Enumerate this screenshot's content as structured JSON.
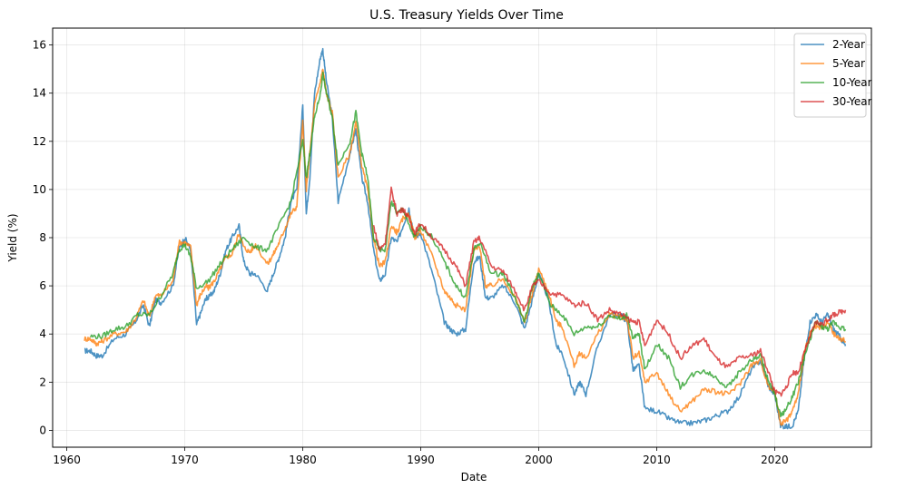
{
  "chart_data": {
    "type": "line",
    "title": "U.S. Treasury Yields Over Time",
    "xlabel": "Date",
    "ylabel": "Yield (%)",
    "xlim": [
      1958.8,
      2028.2
    ],
    "ylim": [
      -0.7,
      16.7
    ],
    "x_ticks": [
      1960,
      1970,
      1980,
      1990,
      2000,
      2010,
      2020
    ],
    "y_ticks": [
      0,
      2,
      4,
      6,
      8,
      10,
      12,
      14,
      16
    ],
    "grid": true,
    "legend_position": "top-right",
    "series": [
      {
        "name": "2-Year",
        "color": "#1f77b4",
        "x": [
          1961.5,
          1962.0,
          1962.5,
          1963.0,
          1964.0,
          1965.0,
          1965.8,
          1966.5,
          1967.0,
          1967.5,
          1968.0,
          1969.0,
          1969.5,
          1970.0,
          1970.5,
          1971.0,
          1971.3,
          1971.8,
          1972.0,
          1972.5,
          1973.0,
          1973.5,
          1974.0,
          1974.6,
          1975.0,
          1975.5,
          1976.0,
          1977.0,
          1977.5,
          1978.0,
          1978.5,
          1979.0,
          1979.5,
          1980.0,
          1980.3,
          1980.6,
          1981.0,
          1981.5,
          1981.7,
          1982.0,
          1982.5,
          1983.0,
          1984.0,
          1984.5,
          1985.0,
          1985.5,
          1986.0,
          1986.5,
          1987.0,
          1987.5,
          1988.0,
          1988.5,
          1989.0,
          1989.5,
          1990.0,
          1991.0,
          1992.0,
          1992.5,
          1993.0,
          1993.8,
          1994.5,
          1995.0,
          1995.5,
          1996.0,
          1997.0,
          1998.0,
          1998.8,
          1999.5,
          2000.0,
          2000.8,
          2001.5,
          2002.0,
          2003.0,
          2003.5,
          2004.0,
          2005.0,
          2006.0,
          2007.0,
          2007.5,
          2008.0,
          2008.5,
          2009.0,
          2010.0,
          2011.0,
          2012.0,
          2013.0,
          2014.0,
          2015.0,
          2016.0,
          2017.0,
          2018.0,
          2018.8,
          2019.5,
          2020.0,
          2020.5,
          2021.0,
          2021.5,
          2022.0,
          2022.5,
          2023.0,
          2023.5,
          2024.0,
          2024.5,
          2025.0,
          2025.5,
          2026.0
        ],
        "y": [
          3.3,
          3.3,
          3.1,
          3.1,
          3.8,
          4.0,
          4.5,
          5.2,
          4.3,
          5.4,
          5.3,
          6.0,
          7.5,
          8.0,
          7.5,
          4.4,
          4.8,
          5.5,
          5.5,
          5.8,
          6.5,
          7.5,
          8.0,
          8.5,
          7.0,
          6.5,
          6.5,
          5.8,
          6.5,
          7.2,
          8.0,
          9.5,
          10.0,
          13.5,
          9.0,
          10.5,
          14.0,
          15.5,
          15.8,
          14.5,
          13.0,
          9.5,
          11.5,
          12.5,
          10.5,
          9.5,
          7.5,
          6.2,
          6.5,
          8.0,
          7.8,
          8.5,
          9.2,
          8.0,
          8.2,
          6.5,
          4.5,
          4.2,
          4.0,
          4.2,
          7.0,
          7.2,
          5.5,
          5.5,
          6.0,
          5.3,
          4.2,
          5.5,
          6.5,
          5.5,
          3.5,
          3.2,
          1.5,
          2.0,
          1.5,
          3.5,
          4.8,
          4.8,
          4.5,
          2.5,
          2.7,
          0.9,
          0.8,
          0.5,
          0.3,
          0.3,
          0.4,
          0.6,
          0.8,
          1.4,
          2.5,
          2.9,
          1.8,
          1.5,
          0.2,
          0.15,
          0.2,
          0.8,
          3.0,
          4.5,
          4.8,
          4.5,
          4.8,
          4.2,
          3.9,
          3.5
        ]
      },
      {
        "name": "5-Year",
        "color": "#ff7f0e",
        "x": [
          1961.5,
          1962.0,
          1962.5,
          1963.0,
          1964.0,
          1965.0,
          1965.8,
          1966.5,
          1967.0,
          1967.5,
          1968.0,
          1969.0,
          1969.5,
          1970.0,
          1970.5,
          1971.0,
          1971.3,
          1971.8,
          1972.0,
          1972.5,
          1973.0,
          1973.5,
          1974.0,
          1974.6,
          1975.0,
          1975.5,
          1976.0,
          1977.0,
          1977.5,
          1978.0,
          1978.5,
          1979.0,
          1979.5,
          1980.0,
          1980.3,
          1980.6,
          1981.0,
          1981.5,
          1981.7,
          1982.0,
          1982.5,
          1983.0,
          1984.0,
          1984.5,
          1985.0,
          1985.5,
          1986.0,
          1986.5,
          1987.0,
          1987.5,
          1988.0,
          1988.5,
          1989.0,
          1989.5,
          1990.0,
          1991.0,
          1992.0,
          1992.5,
          1993.0,
          1993.8,
          1994.5,
          1995.0,
          1995.5,
          1996.0,
          1997.0,
          1998.0,
          1998.8,
          1999.5,
          2000.0,
          2000.8,
          2001.5,
          2002.0,
          2003.0,
          2003.5,
          2004.0,
          2005.0,
          2006.0,
          2007.0,
          2007.5,
          2008.0,
          2008.5,
          2009.0,
          2010.0,
          2011.0,
          2012.0,
          2013.0,
          2014.0,
          2015.0,
          2016.0,
          2017.0,
          2018.0,
          2018.8,
          2019.5,
          2020.0,
          2020.5,
          2021.0,
          2021.5,
          2022.0,
          2022.5,
          2023.0,
          2023.5,
          2024.0,
          2024.5,
          2025.0,
          2025.5,
          2026.0
        ],
        "y": [
          3.8,
          3.8,
          3.6,
          3.7,
          4.0,
          4.1,
          4.6,
          5.4,
          4.7,
          5.6,
          5.6,
          6.2,
          7.8,
          7.8,
          7.6,
          5.2,
          5.6,
          6.0,
          5.9,
          6.2,
          6.7,
          7.2,
          7.3,
          8.2,
          7.6,
          7.4,
          7.7,
          6.9,
          7.3,
          7.8,
          8.4,
          9.0,
          9.3,
          12.8,
          10.0,
          11.5,
          13.5,
          14.5,
          15.0,
          14.0,
          13.2,
          10.5,
          11.5,
          12.8,
          11.0,
          10.0,
          8.0,
          6.8,
          7.0,
          8.5,
          8.2,
          8.8,
          9.0,
          8.0,
          8.3,
          7.2,
          5.8,
          5.5,
          5.2,
          5.0,
          7.5,
          7.6,
          6.0,
          6.0,
          6.3,
          5.5,
          4.5,
          5.7,
          6.7,
          5.8,
          4.5,
          4.3,
          2.7,
          3.2,
          3.0,
          4.0,
          4.8,
          4.7,
          4.6,
          3.0,
          3.2,
          2.0,
          2.4,
          1.5,
          0.8,
          1.2,
          1.7,
          1.6,
          1.5,
          1.9,
          2.7,
          2.9,
          1.8,
          1.6,
          0.3,
          0.4,
          0.8,
          1.5,
          3.2,
          4.0,
          4.3,
          4.2,
          4.5,
          4.0,
          3.8,
          3.7
        ]
      },
      {
        "name": "10-Year",
        "color": "#2ca02c",
        "x": [
          1962.0,
          1963.0,
          1964.0,
          1965.0,
          1966.0,
          1967.0,
          1968.0,
          1969.0,
          1969.5,
          1970.0,
          1970.5,
          1971.0,
          1972.0,
          1973.0,
          1974.0,
          1975.0,
          1976.0,
          1977.0,
          1978.0,
          1979.0,
          1980.0,
          1980.3,
          1980.6,
          1981.0,
          1981.5,
          1981.7,
          1982.0,
          1982.5,
          1983.0,
          1984.0,
          1984.5,
          1985.0,
          1985.5,
          1986.0,
          1986.5,
          1987.0,
          1987.5,
          1988.0,
          1988.5,
          1989.0,
          1989.5,
          1990.0,
          1991.0,
          1992.0,
          1993.0,
          1993.8,
          1994.5,
          1995.0,
          1996.0,
          1997.0,
          1998.0,
          1998.8,
          1999.5,
          2000.0,
          2001.0,
          2002.0,
          2003.0,
          2004.0,
          2005.0,
          2006.0,
          2007.0,
          2007.5,
          2008.0,
          2008.5,
          2009.0,
          2010.0,
          2011.0,
          2012.0,
          2013.0,
          2014.0,
          2015.0,
          2016.0,
          2017.0,
          2018.0,
          2018.8,
          2019.5,
          2020.0,
          2020.5,
          2021.0,
          2021.5,
          2022.0,
          2022.5,
          2023.0,
          2023.5,
          2024.0,
          2024.5,
          2025.0,
          2025.5,
          2026.0
        ],
        "y": [
          3.9,
          3.9,
          4.2,
          4.3,
          4.8,
          4.8,
          5.6,
          6.5,
          7.5,
          7.7,
          7.2,
          5.9,
          6.2,
          6.9,
          7.5,
          8.0,
          7.6,
          7.5,
          8.5,
          9.5,
          12.0,
          10.5,
          11.5,
          13.0,
          14.0,
          14.8,
          14.0,
          13.0,
          11.0,
          12.0,
          13.2,
          11.5,
          10.5,
          8.0,
          7.5,
          7.5,
          9.5,
          9.0,
          9.2,
          8.5,
          8.0,
          8.5,
          8.0,
          7.0,
          6.0,
          5.5,
          7.5,
          7.8,
          6.5,
          6.5,
          5.5,
          4.5,
          6.0,
          6.5,
          5.2,
          4.8,
          4.0,
          4.3,
          4.3,
          4.8,
          4.6,
          4.8,
          3.8,
          4.0,
          2.5,
          3.6,
          3.0,
          1.8,
          2.3,
          2.5,
          2.2,
          1.8,
          2.4,
          2.9,
          3.1,
          2.0,
          1.5,
          0.6,
          0.9,
          1.4,
          2.0,
          3.0,
          3.8,
          4.5,
          4.3,
          4.2,
          4.5,
          4.3,
          4.2
        ]
      },
      {
        "name": "30-Year",
        "color": "#d62728",
        "x": [
          1986.0,
          1986.5,
          1987.0,
          1987.5,
          1988.0,
          1988.5,
          1989.0,
          1989.5,
          1990.0,
          1991.0,
          1992.0,
          1993.0,
          1993.8,
          1994.5,
          1995.0,
          1996.0,
          1997.0,
          1998.0,
          1998.8,
          1999.5,
          2000.0,
          2001.0,
          2002.0,
          2003.0,
          2004.0,
          2005.0,
          2006.0,
          2007.0,
          2008.0,
          2008.5,
          2009.0,
          2010.0,
          2011.0,
          2012.0,
          2013.0,
          2014.0,
          2015.0,
          2016.0,
          2017.0,
          2018.0,
          2018.8,
          2019.5,
          2020.0,
          2020.5,
          2021.0,
          2021.5,
          2022.0,
          2022.5,
          2023.0,
          2023.5,
          2024.0,
          2024.5,
          2025.0,
          2025.5,
          2026.0
        ],
        "y": [
          8.5,
          7.5,
          7.8,
          10.0,
          9.0,
          9.2,
          8.8,
          8.2,
          8.6,
          8.0,
          7.5,
          6.8,
          6.0,
          7.8,
          8.0,
          6.8,
          6.6,
          5.8,
          5.0,
          6.0,
          6.2,
          5.7,
          5.6,
          5.2,
          5.3,
          4.6,
          5.0,
          4.8,
          4.5,
          4.5,
          3.5,
          4.6,
          4.0,
          3.0,
          3.5,
          3.8,
          3.0,
          2.6,
          3.0,
          3.1,
          3.3,
          2.4,
          1.6,
          1.5,
          1.8,
          2.4,
          2.4,
          3.2,
          3.9,
          4.5,
          4.4,
          4.6,
          4.8,
          4.9,
          5.0
        ]
      }
    ]
  }
}
